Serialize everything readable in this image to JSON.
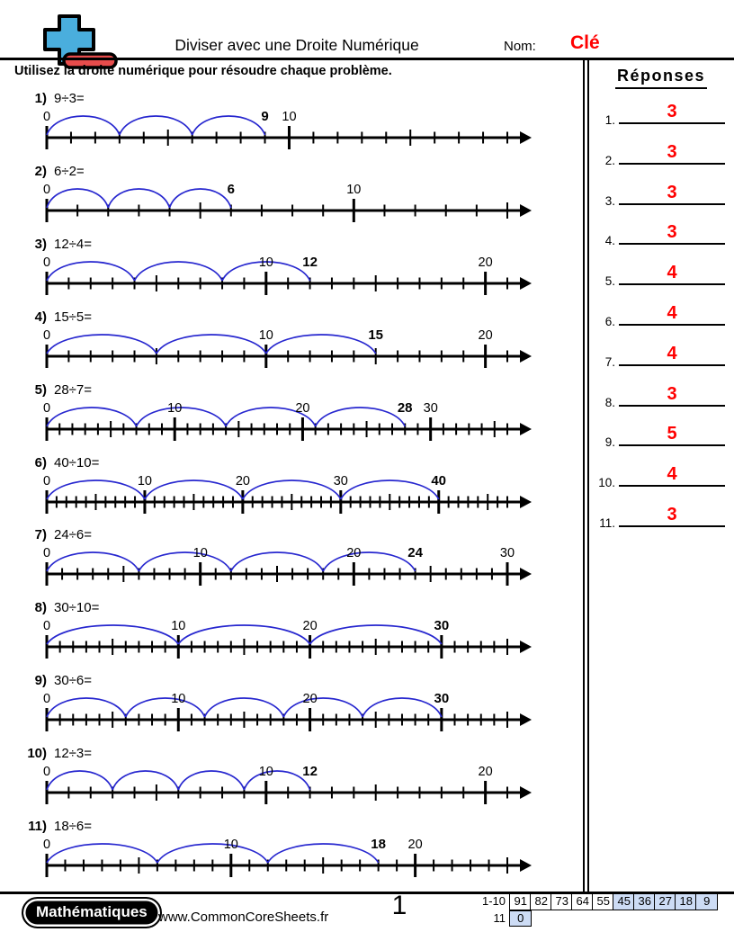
{
  "header": {
    "title": "Diviser avec une Droite Numérique",
    "name_label": "Nom:",
    "name_value": "Clé",
    "instruction": "Utilisez la droite numérique pour résoudre chaque problème.",
    "answers_title": "Réponses"
  },
  "colors": {
    "arc_blue": "#2727cf",
    "answer_red": "#ff0000",
    "logo_blue": "#4aaedd",
    "logo_red": "#e74c4c",
    "score_highlight": "#cddcf5",
    "line_black": "#000000"
  },
  "problems": [
    {
      "num": "1)",
      "expr": "9÷3=",
      "dividend": 9,
      "divisor": 3,
      "quotient": 3,
      "ticks_end": 19,
      "labels": [
        {
          "v": 0
        },
        {
          "v": 9,
          "bold": true
        },
        {
          "v": 10
        }
      ]
    },
    {
      "num": "2)",
      "expr": "6÷2=",
      "dividend": 6,
      "divisor": 2,
      "quotient": 3,
      "ticks_end": 15,
      "labels": [
        {
          "v": 0
        },
        {
          "v": 6,
          "bold": true
        },
        {
          "v": 10
        }
      ]
    },
    {
      "num": "3)",
      "expr": "12÷4=",
      "dividend": 12,
      "divisor": 4,
      "quotient": 3,
      "ticks_end": 21,
      "labels": [
        {
          "v": 0
        },
        {
          "v": 10
        },
        {
          "v": 12,
          "bold": true
        },
        {
          "v": 20
        }
      ]
    },
    {
      "num": "4)",
      "expr": "15÷5=",
      "dividend": 15,
      "divisor": 5,
      "quotient": 3,
      "ticks_end": 21,
      "labels": [
        {
          "v": 0
        },
        {
          "v": 10
        },
        {
          "v": 15,
          "bold": true
        },
        {
          "v": 20
        }
      ]
    },
    {
      "num": "5)",
      "expr": "28÷7=",
      "dividend": 28,
      "divisor": 7,
      "quotient": 4,
      "ticks_end": 36,
      "labels": [
        {
          "v": 0
        },
        {
          "v": 10
        },
        {
          "v": 20
        },
        {
          "v": 28,
          "bold": true
        },
        {
          "v": 30
        }
      ]
    },
    {
      "num": "6)",
      "expr": "40÷10=",
      "dividend": 40,
      "divisor": 10,
      "quotient": 4,
      "ticks_end": 47,
      "labels": [
        {
          "v": 0
        },
        {
          "v": 10
        },
        {
          "v": 20
        },
        {
          "v": 30
        },
        {
          "v": 40,
          "bold": true
        }
      ]
    },
    {
      "num": "7)",
      "expr": "24÷6=",
      "dividend": 24,
      "divisor": 6,
      "quotient": 4,
      "ticks_end": 30,
      "labels": [
        {
          "v": 0
        },
        {
          "v": 10
        },
        {
          "v": 20
        },
        {
          "v": 24,
          "bold": true
        },
        {
          "v": 30
        }
      ]
    },
    {
      "num": "8)",
      "expr": "30÷10=",
      "dividend": 30,
      "divisor": 10,
      "quotient": 3,
      "ticks_end": 35,
      "labels": [
        {
          "v": 0
        },
        {
          "v": 10
        },
        {
          "v": 20
        },
        {
          "v": 30,
          "bold": true
        }
      ]
    },
    {
      "num": "9)",
      "expr": "30÷6=",
      "dividend": 30,
      "divisor": 6,
      "quotient": 5,
      "ticks_end": 35,
      "labels": [
        {
          "v": 0
        },
        {
          "v": 10
        },
        {
          "v": 20
        },
        {
          "v": 30,
          "bold": true
        }
      ]
    },
    {
      "num": "10)",
      "expr": "12÷3=",
      "dividend": 12,
      "divisor": 3,
      "quotient": 4,
      "ticks_end": 21,
      "labels": [
        {
          "v": 0
        },
        {
          "v": 10
        },
        {
          "v": 12,
          "bold": true
        },
        {
          "v": 20
        }
      ]
    },
    {
      "num": "11)",
      "expr": "18÷6=",
      "dividend": 18,
      "divisor": 6,
      "quotient": 3,
      "ticks_end": 25,
      "labels": [
        {
          "v": 0
        },
        {
          "v": 10
        },
        {
          "v": 18,
          "bold": true
        },
        {
          "v": 20
        }
      ]
    }
  ],
  "answers": {
    "items": [
      {
        "n": "1.",
        "v": "3"
      },
      {
        "n": "2.",
        "v": "3"
      },
      {
        "n": "3.",
        "v": "3"
      },
      {
        "n": "4.",
        "v": "3"
      },
      {
        "n": "5.",
        "v": "4"
      },
      {
        "n": "6.",
        "v": "4"
      },
      {
        "n": "7.",
        "v": "4"
      },
      {
        "n": "8.",
        "v": "3"
      },
      {
        "n": "9.",
        "v": "5"
      },
      {
        "n": "10.",
        "v": "4"
      },
      {
        "n": "11.",
        "v": "3"
      }
    ]
  },
  "footer": {
    "brand": "Mathématiques",
    "site": "www.CommonCoreSheets.fr",
    "page": "1",
    "score": {
      "rows": [
        {
          "label": "1-10",
          "cells": [
            {
              "t": "91"
            },
            {
              "t": "82"
            },
            {
              "t": "73"
            },
            {
              "t": "64"
            },
            {
              "t": "55"
            },
            {
              "t": "45",
              "hl": true
            },
            {
              "t": "36",
              "hl": true
            },
            {
              "t": "27",
              "hl": true
            },
            {
              "t": "18",
              "hl": true
            },
            {
              "t": "9",
              "hl": true
            }
          ]
        },
        {
          "label": "11",
          "cells": [
            {
              "t": "0",
              "hl": true
            }
          ]
        }
      ]
    }
  }
}
